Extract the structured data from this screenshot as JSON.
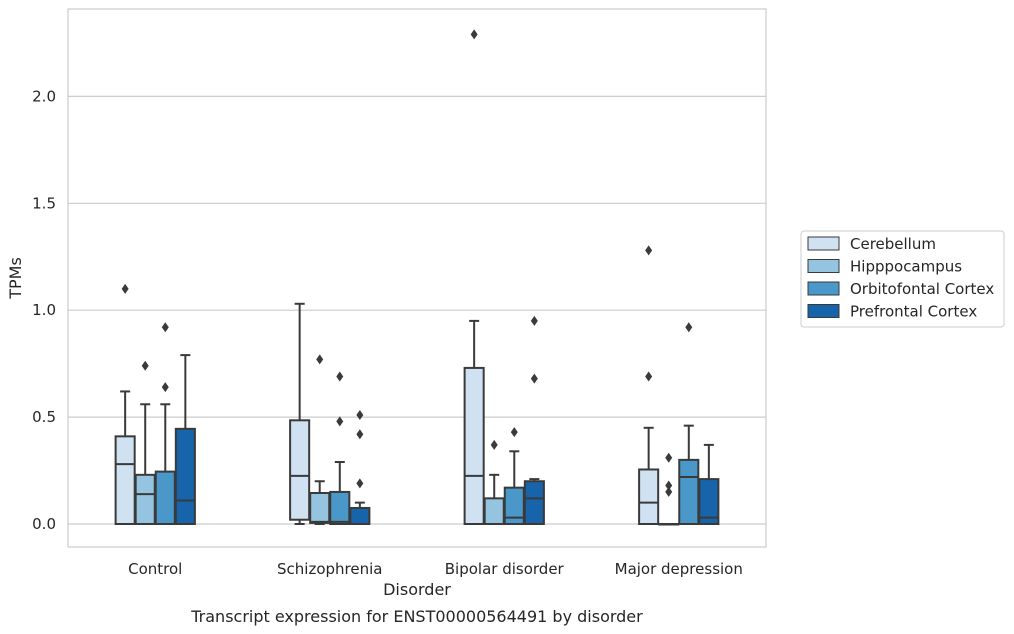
{
  "chart_data": {
    "type": "box",
    "caption": "Transcript expression for ENST00000564491 by disorder",
    "xlabel": "Disorder",
    "ylabel": "TPMs",
    "ylim": [
      -0.11,
      2.41
    ],
    "yticks": [
      "0.0",
      "0.5",
      "1.0",
      "1.5",
      "2.0"
    ],
    "ytick_values": [
      0,
      0.5,
      1.0,
      1.5,
      2.0
    ],
    "grid": true,
    "legend_position": "center-right",
    "categories": [
      "Control",
      "Schizophrenia",
      "Bipolar disorder",
      "Major depression"
    ],
    "series": [
      {
        "name": "Cerebellum",
        "color": "#d0e1f2",
        "boxes": [
          {
            "whislo": 0.0,
            "q1": 0.0,
            "med": 0.28,
            "q3": 0.41,
            "whishi": 0.62,
            "fliers": [
              1.1
            ]
          },
          {
            "whislo": 0.0,
            "q1": 0.02,
            "med": 0.225,
            "q3": 0.485,
            "whishi": 1.03,
            "fliers": []
          },
          {
            "whislo": 0.0,
            "q1": 0.0,
            "med": 0.225,
            "q3": 0.73,
            "whishi": 0.95,
            "fliers": [
              2.29
            ]
          },
          {
            "whislo": 0.0,
            "q1": 0.0,
            "med": 0.1,
            "q3": 0.255,
            "whishi": 0.45,
            "fliers": [
              1.28,
              0.69
            ]
          }
        ]
      },
      {
        "name": "Hipppocampus",
        "color": "#94c4df",
        "boxes": [
          {
            "whislo": 0.0,
            "q1": 0.0,
            "med": 0.14,
            "q3": 0.23,
            "whishi": 0.56,
            "fliers": [
              0.74
            ]
          },
          {
            "whislo": 0.0,
            "q1": 0.005,
            "med": 0.01,
            "q3": 0.145,
            "whishi": 0.2,
            "fliers": [
              0.77
            ]
          },
          {
            "whislo": 0.0,
            "q1": 0.0,
            "med": 0.0,
            "q3": 0.12,
            "whishi": 0.23,
            "fliers": [
              0.37
            ]
          },
          {
            "whislo": 0.0,
            "q1": 0.0,
            "med": 0.0,
            "q3": 0.0,
            "whishi": 0.0,
            "fliers": [
              0.31,
              0.18,
              0.15
            ]
          }
        ]
      },
      {
        "name": "Orbitofontal Cortex",
        "color": "#4a98c9",
        "boxes": [
          {
            "whislo": 0.0,
            "q1": 0.0,
            "med": 0.0,
            "q3": 0.245,
            "whishi": 0.56,
            "fliers": [
              0.92,
              0.64
            ]
          },
          {
            "whislo": 0.0,
            "q1": 0.0,
            "med": 0.01,
            "q3": 0.15,
            "whishi": 0.29,
            "fliers": [
              0.69,
              0.48
            ]
          },
          {
            "whislo": 0.0,
            "q1": 0.0,
            "med": 0.03,
            "q3": 0.17,
            "whishi": 0.34,
            "fliers": [
              0.43
            ]
          },
          {
            "whislo": 0.0,
            "q1": 0.0,
            "med": 0.22,
            "q3": 0.3,
            "whishi": 0.46,
            "fliers": [
              0.92
            ]
          }
        ]
      },
      {
        "name": "Prefrontal Cortex",
        "color": "#1764ab",
        "boxes": [
          {
            "whislo": 0.0,
            "q1": 0.0,
            "med": 0.11,
            "q3": 0.445,
            "whishi": 0.79,
            "fliers": []
          },
          {
            "whislo": 0.0,
            "q1": 0.0,
            "med": 0.0,
            "q3": 0.075,
            "whishi": 0.1,
            "fliers": [
              0.51,
              0.42,
              0.19
            ]
          },
          {
            "whislo": 0.0,
            "q1": 0.0,
            "med": 0.12,
            "q3": 0.2,
            "whishi": 0.21,
            "fliers": [
              0.95,
              0.68
            ]
          },
          {
            "whislo": 0.0,
            "q1": 0.0,
            "med": 0.03,
            "q3": 0.21,
            "whishi": 0.37,
            "fliers": []
          }
        ]
      }
    ]
  }
}
